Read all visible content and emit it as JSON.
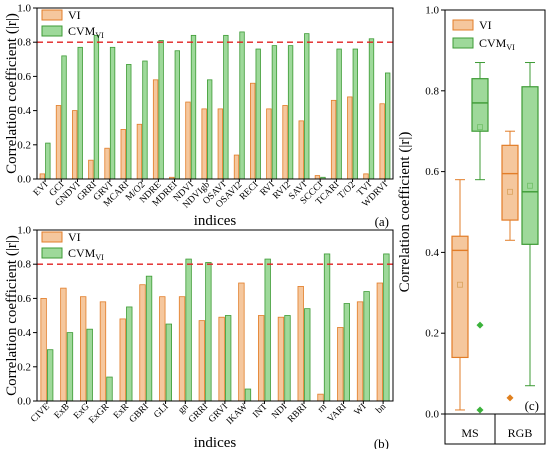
{
  "colors": {
    "vi_fill": "#f5c79d",
    "vi_stroke": "#e27d28",
    "cvm_fill": "#9ed99a",
    "cvm_stroke": "#3d9b35",
    "threshold_line": "#e02020",
    "box_mean_vi": "#d9a25c",
    "box_mean_cvm": "#6fbf66",
    "outlier_vi": "#e0801e",
    "outlier_cvm": "#3bb23b"
  },
  "chart_data": [
    {
      "type": "bar",
      "panel_label": "(a)",
      "xlabel": "indices",
      "ylabel": "Correlation coefficient (|r|)",
      "ylim": [
        0,
        1.0
      ],
      "yticks": [
        "0.0",
        "0.2",
        "0.4",
        "0.6",
        "0.8",
        "1.0"
      ],
      "threshold": 0.8,
      "legend": [
        {
          "text": "VI",
          "sub": ""
        },
        {
          "text": "CVM",
          "sub": "VI"
        }
      ],
      "categories": [
        "EVI",
        "GCI",
        "GNDVI",
        "GRRI",
        "GRVI",
        "MCARI",
        "M/O2",
        "NDRE",
        "MDREI",
        "NDVI",
        "NDVIgb",
        "OSAVI",
        "OSAVI2",
        "RECI",
        "RVI",
        "RVI2",
        "SAVI",
        "SCCCI",
        "TCARI",
        "T/O2",
        "TVI",
        "WDRVI"
      ],
      "series": [
        {
          "name": "VI",
          "values": [
            0.03,
            0.43,
            0.4,
            0.11,
            0.18,
            0.29,
            0.32,
            0.58,
            0.01,
            0.45,
            0.41,
            0.41,
            0.14,
            0.56,
            0.41,
            0.43,
            0.34,
            0.02,
            0.46,
            0.48,
            0.03,
            0.44
          ]
        },
        {
          "name": "CVM",
          "values": [
            0.21,
            0.72,
            0.77,
            0.84,
            0.77,
            0.67,
            0.69,
            0.81,
            0.75,
            0.84,
            0.58,
            0.84,
            0.86,
            0.76,
            0.78,
            0.78,
            0.85,
            0.01,
            0.76,
            0.76,
            0.82,
            0.62
          ]
        }
      ]
    },
    {
      "type": "bar",
      "panel_label": "(b)",
      "xlabel": "indices",
      "ylabel": "Correlation coefficient (|r|)",
      "ylim": [
        0,
        1.0
      ],
      "yticks": [
        "0.0",
        "0.2",
        "0.4",
        "0.6",
        "0.8",
        "1.0"
      ],
      "threshold": 0.8,
      "legend": [
        {
          "text": "VI",
          "sub": ""
        },
        {
          "text": "CVM",
          "sub": "VI"
        }
      ],
      "categories": [
        "CIVE",
        "ExB",
        "ExG",
        "ExGR",
        "ExR",
        "GBRI",
        "GLI",
        "gn",
        "GRRI",
        "GRVI",
        "IKAW",
        "INT",
        "NDI",
        "RBRI",
        "rn",
        "VARI",
        "WI",
        "bn"
      ],
      "series": [
        {
          "name": "VI",
          "values": [
            0.6,
            0.66,
            0.61,
            0.58,
            0.48,
            0.68,
            0.61,
            0.61,
            0.47,
            0.49,
            0.69,
            0.5,
            0.49,
            0.67,
            0.04,
            0.43,
            0.58,
            0.69
          ]
        },
        {
          "name": "CVM",
          "values": [
            0.3,
            0.4,
            0.42,
            0.14,
            0.55,
            0.73,
            0.45,
            0.83,
            0.81,
            0.5,
            0.07,
            0.83,
            0.5,
            0.54,
            0.86,
            0.57,
            0.64,
            0.86
          ]
        }
      ]
    },
    {
      "type": "box",
      "panel_label": "(c)",
      "ylabel": "Correlation coefficient (|r|)",
      "ylim": [
        0,
        1.0
      ],
      "yticks": [
        "0.0",
        "0.2",
        "0.4",
        "0.6",
        "0.8",
        "1.0"
      ],
      "legend": [
        {
          "text": "VI",
          "sub": ""
        },
        {
          "text": "CVM",
          "sub": "VI"
        }
      ],
      "groups": [
        {
          "label": "MS",
          "boxes": [
            {
              "series": "VI",
              "whisker_low": 0.01,
              "q1": 0.14,
              "median": 0.405,
              "q3": 0.44,
              "whisker_high": 0.58,
              "mean": 0.32,
              "outliers": []
            },
            {
              "series": "CVM",
              "whisker_low": 0.58,
              "q1": 0.7,
              "median": 0.77,
              "q3": 0.83,
              "whisker_high": 0.87,
              "mean": 0.71,
              "outliers": [
                0.22,
                0.01
              ]
            }
          ]
        },
        {
          "label": "RGB",
          "boxes": [
            {
              "series": "VI",
              "whisker_low": 0.43,
              "q1": 0.48,
              "median": 0.595,
              "q3": 0.665,
              "whisker_high": 0.7,
              "mean": 0.55,
              "outliers": [
                0.04
              ]
            },
            {
              "series": "CVM",
              "whisker_low": 0.07,
              "q1": 0.42,
              "median": 0.55,
              "q3": 0.81,
              "whisker_high": 0.87,
              "mean": 0.565,
              "outliers": []
            }
          ]
        }
      ]
    }
  ]
}
